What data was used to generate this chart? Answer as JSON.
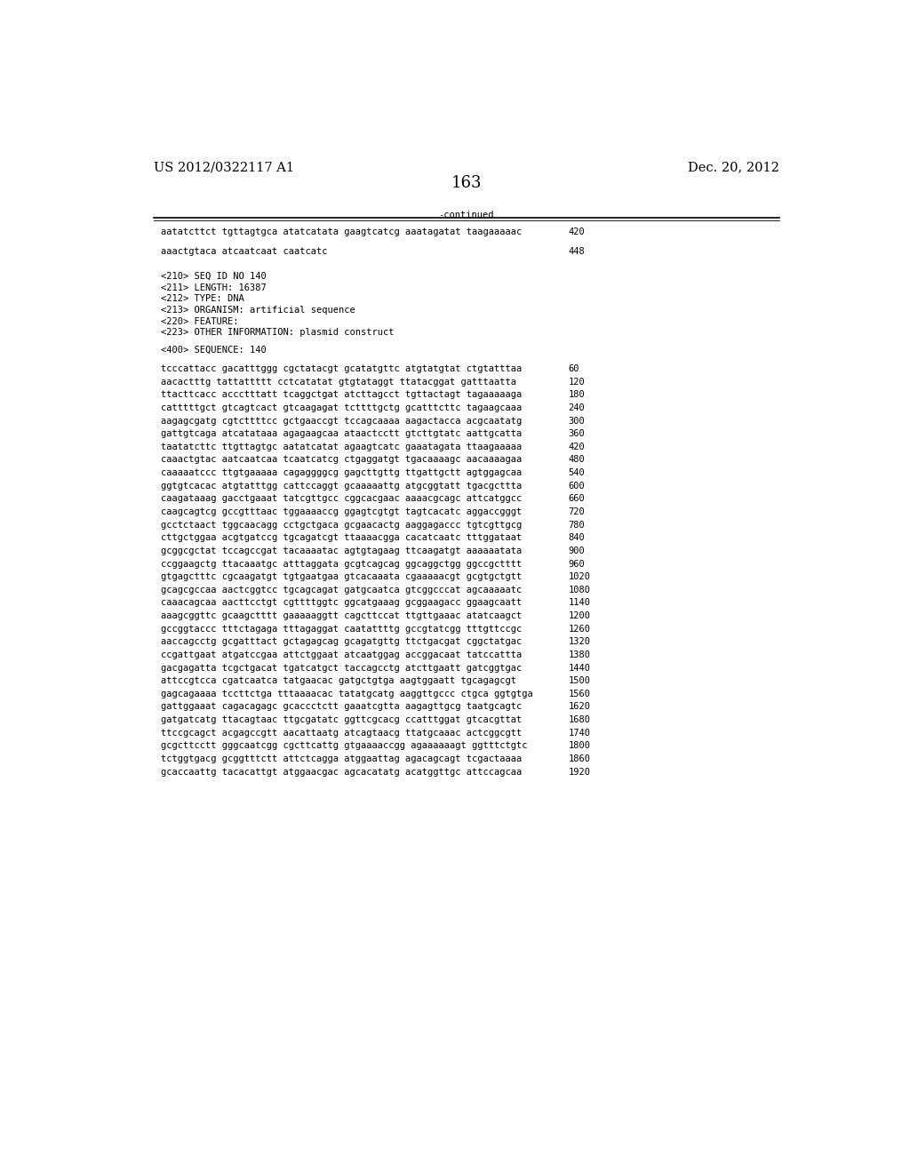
{
  "header_left": "US 2012/0322117 A1",
  "header_right": "Dec. 20, 2012",
  "page_number": "163",
  "continued_label": "-continued",
  "background_color": "#ffffff",
  "text_color": "#000000",
  "mono_font_size": 7.5,
  "header_font_size": 10.5,
  "page_num_font_size": 13,
  "continued_lines": [
    [
      "aatatcttct tgttagtgca atatcatata gaagtcatcg aaatagatat taagaaaaac",
      "420"
    ],
    [
      "aaactgtaca atcaatcaat caatcatc",
      "448"
    ]
  ],
  "metadata_lines": [
    "<210> SEQ ID NO 140",
    "<211> LENGTH: 16387",
    "<212> TYPE: DNA",
    "<213> ORGANISM: artificial sequence",
    "<220> FEATURE:",
    "<223> OTHER INFORMATION: plasmid construct"
  ],
  "sequence_header": "<400> SEQUENCE: 140",
  "sequence_lines": [
    [
      "tcccattacc gacatttggg cgctatacgt gcatatgttc atgtatgtat ctgtatttaa",
      "60"
    ],
    [
      "aacactttg tattattttt cctcatatat gtgtataggt ttatacggat gatttaatta",
      "120"
    ],
    [
      "ttacttcacc accctttatt tcaggctgat atcttagcct tgttactagt tagaaaaaga",
      "180"
    ],
    [
      "catttttgct gtcagtcact gtcaagagat tcttttgctg gcatttcttc tagaagcaaa",
      "240"
    ],
    [
      "aagagcgatg cgtcttttcc gctgaaccgt tccagcaaaa aagactacca acgcaatatg",
      "300"
    ],
    [
      "gattgtcaga atcatataaa agagaagcaa ataactcctt gtcttgtatc aattgcatta",
      "360"
    ],
    [
      "taatatcttc ttgttagtgc aatatcatat agaagtcatc gaaatagata ttaagaaaaa",
      "420"
    ],
    [
      "caaactgtac aatcaatcaa tcaatcatcg ctgaggatgt tgacaaaagc aacaaaagaa",
      "480"
    ],
    [
      "caaaaatccc ttgtgaaaaa cagaggggcg gagcttgttg ttgattgctt agtggagcaa",
      "540"
    ],
    [
      "ggtgtcacac atgtatttgg cattccaggt gcaaaaattg atgcggtatt tgacgcttta",
      "600"
    ],
    [
      "caagataaag gacctgaaat tatcgttgcc cggcacgaac aaaacgcagc attcatggcc",
      "660"
    ],
    [
      "caagcagtcg gccgtttaac tggaaaaccg ggagtcgtgt tagtcacatc aggaccgggt",
      "720"
    ],
    [
      "gcctctaact tggcaacagg cctgctgaca gcgaacactg aaggagaccc tgtcgttgcg",
      "780"
    ],
    [
      "cttgctggaa acgtgatccg tgcagatcgt ttaaaacgga cacatcaatc tttggataat",
      "840"
    ],
    [
      "gcggcgctat tccagccgat tacaaaatac agtgtagaag ttcaagatgt aaaaaatata",
      "900"
    ],
    [
      "ccggaagctg ttacaaatgc atttaggata gcgtcagcag ggcaggctgg ggccgctttt",
      "960"
    ],
    [
      "gtgagctttc cgcaagatgt tgtgaatgaa gtcacaaata cgaaaaacgt gcgtgctgtt",
      "1020"
    ],
    [
      "gcagcgccaa aactcggtcc tgcagcagat gatgcaatca gtcggcccat agcaaaaatc",
      "1080"
    ],
    [
      "caaacagcaa aacttcctgt cgttttggtc ggcatgaaag gcggaagacc ggaagcaatt",
      "1140"
    ],
    [
      "aaagcggttc gcaagctttt gaaaaaggtt cagcttccat ttgttgaaac atatcaagct",
      "1200"
    ],
    [
      "gccggtaccc tttctagaga tttagaggat caatattttg gccgtatcgg tttgttccgc",
      "1260"
    ],
    [
      "aaccagcctg gcgatttact gctagagcag gcagatgttg ttctgacgat cggctatgac",
      "1320"
    ],
    [
      "ccgattgaat atgatccgaa attctggaat atcaatggag accggacaat tatccattta",
      "1380"
    ],
    [
      "gacgagatta tcgctgacat tgatcatgct taccagcctg atcttgaatt gatcggtgac",
      "1440"
    ],
    [
      "attccgtcca cgatcaatca tatgaacac gatgctgtga aagtggaatt tgcagagcgt",
      "1500"
    ],
    [
      "gagcagaaaa tccttctga tttaaaacac tatatgcatg aaggttgccc ctgca ggtgtga",
      "1560"
    ],
    [
      "gattggaaat cagacagagc gcaccctctt gaaatcgtta aagagttgcg taatgcagtc",
      "1620"
    ],
    [
      "gatgatcatg ttacagtaac ttgcgatatc ggttcgcacg ccatttggat gtcacgttat",
      "1680"
    ],
    [
      "ttccgcagct acgagccgtt aacattaatg atcagtaacg ttatgcaaac actcggcgtt",
      "1740"
    ],
    [
      "gcgcttcctt gggcaatcgg cgcttcattg gtgaaaaccgg agaaaaaagt ggtttctgtc",
      "1800"
    ],
    [
      "tctggtgacg gcggtttctt attctcagga atggaattag agacagcagt tcgactaaaa",
      "1860"
    ],
    [
      "gcaccaattg tacacattgt atggaacgac agcacatatg acatggttgc attccagcaa",
      "1920"
    ]
  ]
}
